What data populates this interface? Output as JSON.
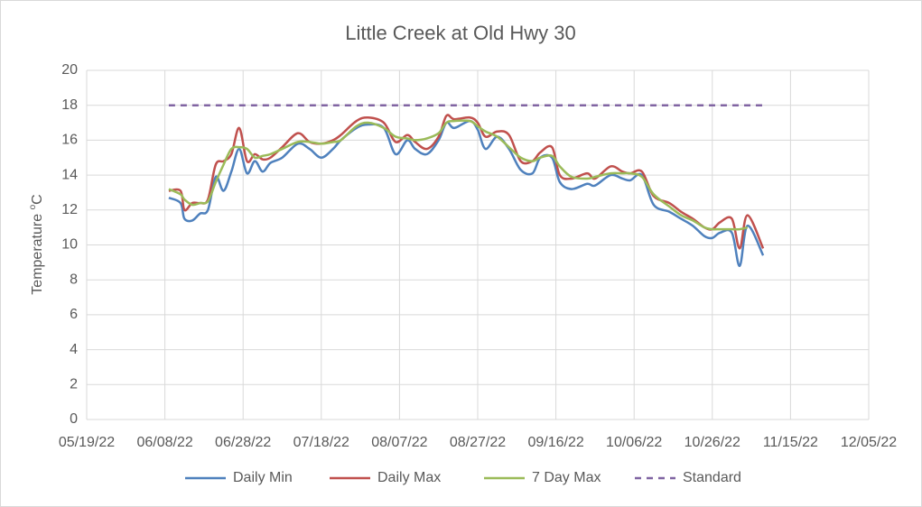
{
  "chart_data": {
    "type": "line",
    "title": "Little Creek at Old Hwy 30",
    "y_label": "Temperature",
    "y_label_sup": "o",
    "y_label_unit": "C",
    "x": [
      "06/09/22",
      "06/12/22",
      "06/13/22",
      "06/15/22",
      "06/17/22",
      "06/19/22",
      "06/21/22",
      "06/23/22",
      "06/25/22",
      "06/27/22",
      "06/29/22",
      "07/01/22",
      "07/03/22",
      "07/05/22",
      "07/08/22",
      "07/12/22",
      "07/15/22",
      "07/18/22",
      "07/21/22",
      "07/23/22",
      "07/27/22",
      "07/30/22",
      "08/03/22",
      "08/06/22",
      "08/09/22",
      "08/11/22",
      "08/14/22",
      "08/17/22",
      "08/19/22",
      "08/21/22",
      "08/25/22",
      "08/27/22",
      "08/29/22",
      "09/01/22",
      "09/04/22",
      "09/07/22",
      "09/10/22",
      "09/12/22",
      "09/15/22",
      "09/17/22",
      "09/20/22",
      "09/24/22",
      "09/26/22",
      "09/30/22",
      "10/03/22",
      "10/05/22",
      "10/08/22",
      "10/11/22",
      "10/15/22",
      "10/18/22",
      "10/21/22",
      "10/24/22",
      "10/26/22",
      "10/28/22",
      "10/31/22",
      "11/02/22",
      "11/04/22",
      "11/08/22"
    ],
    "series": [
      {
        "name": "Daily Min",
        "color": "#4f81bd",
        "values": [
          12.7,
          12.4,
          11.5,
          11.4,
          11.8,
          12.0,
          13.9,
          13.1,
          14.2,
          15.5,
          14.1,
          14.8,
          14.2,
          14.7,
          15.0,
          15.8,
          15.5,
          15.0,
          15.5,
          16.0,
          16.7,
          16.9,
          16.7,
          15.2,
          16.0,
          15.5,
          15.2,
          16.0,
          17.0,
          16.7,
          17.1,
          16.6,
          15.5,
          16.2,
          15.5,
          14.3,
          14.1,
          15.0,
          15.0,
          13.6,
          13.2,
          13.5,
          13.4,
          14.0,
          13.8,
          13.7,
          14.0,
          12.3,
          11.9,
          11.5,
          11.1,
          10.5,
          10.4,
          10.7,
          10.7,
          8.8,
          11.1,
          9.4
        ]
      },
      {
        "name": "Daily Max",
        "color": "#c0504d",
        "values": [
          13.1,
          13.1,
          12.0,
          12.4,
          12.4,
          12.6,
          14.6,
          14.8,
          15.2,
          16.7,
          14.8,
          15.2,
          14.9,
          15.0,
          15.6,
          16.4,
          15.9,
          15.8,
          16.0,
          16.3,
          17.1,
          17.3,
          17.0,
          15.9,
          16.3,
          15.9,
          15.5,
          16.2,
          17.4,
          17.2,
          17.3,
          17.0,
          16.2,
          16.5,
          16.3,
          14.8,
          14.8,
          15.3,
          15.6,
          14.0,
          13.8,
          14.1,
          13.8,
          14.5,
          14.2,
          14.1,
          14.2,
          12.8,
          12.4,
          11.9,
          11.5,
          11.0,
          10.9,
          11.3,
          11.5,
          9.8,
          11.7,
          9.8
        ]
      },
      {
        "name": "7 Day Max",
        "color": "#9bbb59",
        "values": [
          13.2,
          12.9,
          12.6,
          12.3,
          12.4,
          12.5,
          13.6,
          14.6,
          15.5,
          15.6,
          15.5,
          15.0,
          15.1,
          15.2,
          15.5,
          15.9,
          15.9,
          15.8,
          15.9,
          16.0,
          16.8,
          17.0,
          16.7,
          16.2,
          16.1,
          16.0,
          16.1,
          16.4,
          17.0,
          17.1,
          17.1,
          16.8,
          16.5,
          16.2,
          15.6,
          15.0,
          14.8,
          15.0,
          15.1,
          14.5,
          13.9,
          13.8,
          13.9,
          14.1,
          14.1,
          14.1,
          13.9,
          12.9,
          12.2,
          11.7,
          11.4,
          11.0,
          10.9,
          10.9,
          10.9,
          10.9,
          11.0,
          null
        ]
      },
      {
        "name": "Standard",
        "color": "#8064a2",
        "dashed": true,
        "x": [
          "06/09/22",
          "11/08/22"
        ],
        "values": [
          18,
          18
        ]
      }
    ],
    "xlim": [
      "05/19/22",
      "12/05/22"
    ],
    "xticks": [
      "05/19/22",
      "06/08/22",
      "06/28/22",
      "07/18/22",
      "08/07/22",
      "08/27/22",
      "09/16/22",
      "10/06/22",
      "10/26/22",
      "11/15/22",
      "12/05/22"
    ],
    "ylim": [
      0,
      20
    ],
    "yticks": [
      0,
      2,
      4,
      6,
      8,
      10,
      12,
      14,
      16,
      18,
      20
    ],
    "grid": true,
    "legend": "bottom"
  }
}
